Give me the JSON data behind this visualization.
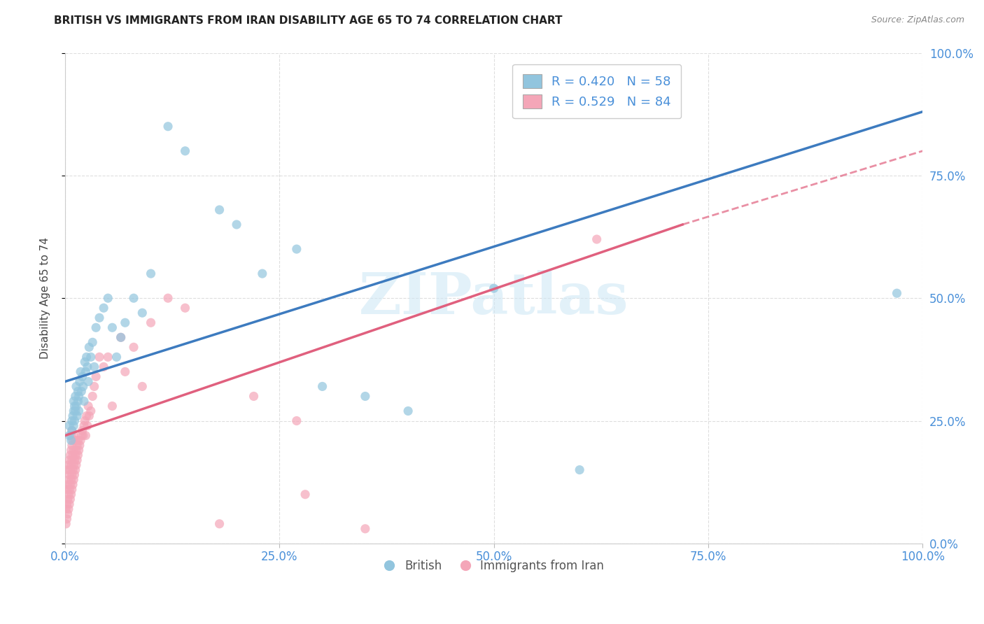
{
  "title": "BRITISH VS IMMIGRANTS FROM IRAN DISABILITY AGE 65 TO 74 CORRELATION CHART",
  "source": "Source: ZipAtlas.com",
  "ylabel": "Disability Age 65 to 74",
  "x_ticks": [
    0.0,
    0.25,
    0.5,
    0.75,
    1.0
  ],
  "x_tick_labels": [
    "0.0%",
    "25.0%",
    "50.0%",
    "75.0%",
    "100.0%"
  ],
  "y_ticks": [
    0.0,
    0.25,
    0.5,
    0.75,
    1.0
  ],
  "y_tick_labels_right": [
    "0.0%",
    "25.0%",
    "50.0%",
    "75.0%",
    "100.0%"
  ],
  "blue_R": 0.42,
  "blue_N": 58,
  "pink_R": 0.529,
  "pink_N": 84,
  "blue_color": "#92c5de",
  "pink_color": "#f4a6b8",
  "blue_line_color": "#3d7bbf",
  "pink_line_color": "#e0607e",
  "legend_label_blue": "British",
  "legend_label_pink": "Immigrants from Iran",
  "background_color": "#ffffff",
  "watermark": "ZIPatlas",
  "blue_x": [
    0.005,
    0.005,
    0.007,
    0.008,
    0.008,
    0.009,
    0.01,
    0.01,
    0.01,
    0.011,
    0.011,
    0.012,
    0.012,
    0.013,
    0.013,
    0.014,
    0.015,
    0.015,
    0.016,
    0.016,
    0.017,
    0.018,
    0.019,
    0.02,
    0.021,
    0.022,
    0.023,
    0.024,
    0.025,
    0.026,
    0.027,
    0.028,
    0.03,
    0.032,
    0.034,
    0.036,
    0.04,
    0.045,
    0.05,
    0.055,
    0.06,
    0.065,
    0.07,
    0.08,
    0.09,
    0.1,
    0.12,
    0.14,
    0.18,
    0.2,
    0.23,
    0.27,
    0.3,
    0.35,
    0.4,
    0.5,
    0.6,
    0.97
  ],
  "blue_y": [
    0.22,
    0.24,
    0.21,
    0.23,
    0.25,
    0.26,
    0.24,
    0.27,
    0.29,
    0.25,
    0.28,
    0.3,
    0.27,
    0.32,
    0.28,
    0.26,
    0.29,
    0.31,
    0.27,
    0.3,
    0.33,
    0.35,
    0.31,
    0.34,
    0.32,
    0.29,
    0.37,
    0.35,
    0.38,
    0.36,
    0.33,
    0.4,
    0.38,
    0.41,
    0.36,
    0.44,
    0.46,
    0.48,
    0.5,
    0.44,
    0.38,
    0.42,
    0.45,
    0.5,
    0.47,
    0.55,
    0.85,
    0.8,
    0.68,
    0.65,
    0.55,
    0.6,
    0.32,
    0.3,
    0.27,
    0.52,
    0.15,
    0.51
  ],
  "pink_x": [
    0.001,
    0.001,
    0.002,
    0.002,
    0.002,
    0.003,
    0.003,
    0.003,
    0.003,
    0.004,
    0.004,
    0.004,
    0.004,
    0.005,
    0.005,
    0.005,
    0.005,
    0.006,
    0.006,
    0.006,
    0.006,
    0.007,
    0.007,
    0.007,
    0.007,
    0.007,
    0.008,
    0.008,
    0.008,
    0.008,
    0.008,
    0.009,
    0.009,
    0.009,
    0.009,
    0.01,
    0.01,
    0.01,
    0.01,
    0.011,
    0.011,
    0.012,
    0.012,
    0.012,
    0.013,
    0.013,
    0.014,
    0.014,
    0.015,
    0.015,
    0.016,
    0.017,
    0.018,
    0.019,
    0.02,
    0.021,
    0.022,
    0.023,
    0.024,
    0.025,
    0.026,
    0.027,
    0.028,
    0.03,
    0.032,
    0.034,
    0.036,
    0.04,
    0.045,
    0.05,
    0.055,
    0.065,
    0.07,
    0.08,
    0.09,
    0.1,
    0.12,
    0.14,
    0.18,
    0.22,
    0.27,
    0.28,
    0.35,
    0.62
  ],
  "pink_y": [
    0.04,
    0.07,
    0.05,
    0.08,
    0.11,
    0.06,
    0.09,
    0.12,
    0.15,
    0.07,
    0.1,
    0.13,
    0.16,
    0.08,
    0.11,
    0.14,
    0.17,
    0.09,
    0.12,
    0.15,
    0.18,
    0.1,
    0.13,
    0.16,
    0.19,
    0.22,
    0.11,
    0.14,
    0.17,
    0.2,
    0.23,
    0.12,
    0.15,
    0.18,
    0.21,
    0.13,
    0.16,
    0.19,
    0.22,
    0.14,
    0.17,
    0.15,
    0.18,
    0.21,
    0.16,
    0.19,
    0.17,
    0.2,
    0.18,
    0.21,
    0.19,
    0.2,
    0.21,
    0.22,
    0.23,
    0.22,
    0.24,
    0.25,
    0.22,
    0.26,
    0.24,
    0.28,
    0.26,
    0.27,
    0.3,
    0.32,
    0.34,
    0.38,
    0.36,
    0.38,
    0.28,
    0.42,
    0.35,
    0.4,
    0.32,
    0.45,
    0.5,
    0.48,
    0.04,
    0.3,
    0.25,
    0.1,
    0.03,
    0.62
  ],
  "blue_line": {
    "x0": 0.0,
    "y0": 0.33,
    "x1": 1.0,
    "y1": 0.88
  },
  "pink_line_solid": {
    "x0": 0.0,
    "y0": 0.22,
    "x1": 0.72,
    "y1": 0.65
  },
  "pink_line_dashed": {
    "x0": 0.72,
    "y0": 0.65,
    "x1": 1.0,
    "y1": 0.8
  },
  "grid_color": "#d0d0d0",
  "tick_color": "#4a90d9",
  "figsize": [
    14.06,
    8.92
  ],
  "dpi": 100
}
